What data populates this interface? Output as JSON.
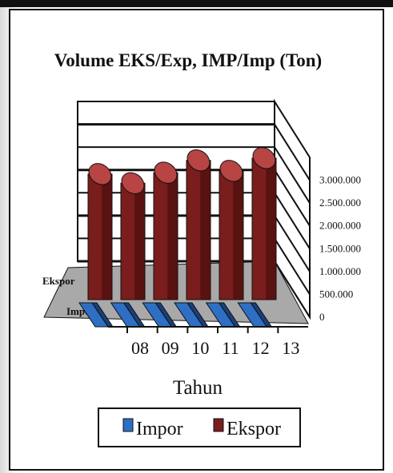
{
  "chart_data": {
    "type": "bar",
    "title": "Volume EKS/Exp, IMP/Imp (Ton)",
    "xlabel": "Tahun",
    "ylabel": "",
    "categories": [
      "08",
      "09",
      "10",
      "11",
      "12",
      "13"
    ],
    "depth_labels": [
      "Ekspor",
      "Impor"
    ],
    "yticks": [
      "0",
      "500.000",
      "1.000.000",
      "1.500.000",
      "2.000.000",
      "2.500.000",
      "3.000.000"
    ],
    "ylim": [
      0,
      3500000
    ],
    "series": [
      {
        "name": "Impor",
        "values": [
          90000,
          80000,
          90000,
          90000,
          90000,
          90000
        ]
      },
      {
        "name": "Ekspor",
        "values": [
          2750000,
          2550000,
          2780000,
          3050000,
          2820000,
          3100000
        ]
      }
    ],
    "legend_position": "bottom",
    "grid": true,
    "colors": {
      "impor": "#2e6fc4",
      "impor_dark": "#1a3f7a",
      "impor_top": "#6fa2e6",
      "ekspor": "#7a1d1d",
      "ekspor_dark": "#3d0a0a",
      "ekspor_top": "#b84444",
      "floor": "#a9a9a9",
      "wall": "#ffffff",
      "line": "#111111"
    }
  }
}
